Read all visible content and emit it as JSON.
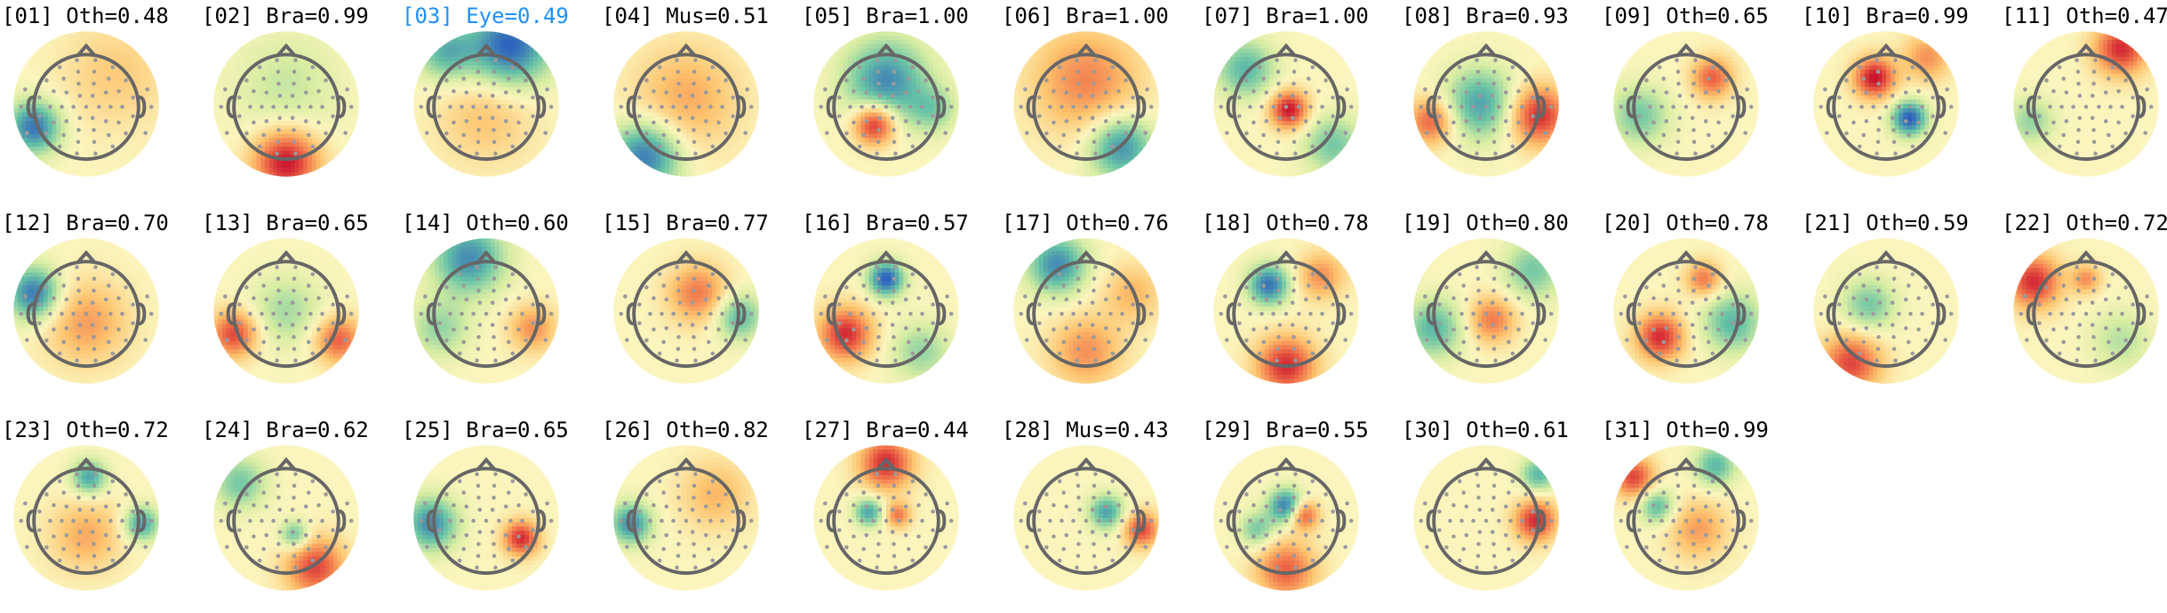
{
  "colors": {
    "negative_strong": "#2c5fbf",
    "neutral": "#fbf5bd",
    "positive_strong": "#c8102e",
    "highlight_label": "#1e90ff",
    "head_outline": "#666666",
    "electrode": "#9a9a9a"
  },
  "components": [
    {
      "id": "01",
      "label": "[01] Oth=0.48",
      "class": "Oth",
      "prob": 0.48,
      "highlight": false
    },
    {
      "id": "02",
      "label": "[02] Bra=0.99",
      "class": "Bra",
      "prob": 0.99,
      "highlight": false
    },
    {
      "id": "03",
      "label": "[03] Eye=0.49",
      "class": "Eye",
      "prob": 0.49,
      "highlight": true
    },
    {
      "id": "04",
      "label": "[04] Mus=0.51",
      "class": "Mus",
      "prob": 0.51,
      "highlight": false
    },
    {
      "id": "05",
      "label": "[05] Bra=1.00",
      "class": "Bra",
      "prob": 1.0,
      "highlight": false
    },
    {
      "id": "06",
      "label": "[06] Bra=1.00",
      "class": "Bra",
      "prob": 1.0,
      "highlight": false
    },
    {
      "id": "07",
      "label": "[07] Bra=1.00",
      "class": "Bra",
      "prob": 1.0,
      "highlight": false
    },
    {
      "id": "08",
      "label": "[08] Bra=0.93",
      "class": "Bra",
      "prob": 0.93,
      "highlight": false
    },
    {
      "id": "09",
      "label": "[09] Oth=0.65",
      "class": "Oth",
      "prob": 0.65,
      "highlight": false
    },
    {
      "id": "10",
      "label": "[10] Bra=0.99",
      "class": "Bra",
      "prob": 0.99,
      "highlight": false
    },
    {
      "id": "11",
      "label": "[11] Oth=0.47",
      "class": "Oth",
      "prob": 0.47,
      "highlight": false
    },
    {
      "id": "12",
      "label": "[12] Bra=0.70",
      "class": "Bra",
      "prob": 0.7,
      "highlight": false
    },
    {
      "id": "13",
      "label": "[13] Bra=0.65",
      "class": "Bra",
      "prob": 0.65,
      "highlight": false
    },
    {
      "id": "14",
      "label": "[14] Oth=0.60",
      "class": "Oth",
      "prob": 0.6,
      "highlight": false
    },
    {
      "id": "15",
      "label": "[15] Bra=0.77",
      "class": "Bra",
      "prob": 0.77,
      "highlight": false
    },
    {
      "id": "16",
      "label": "[16] Bra=0.57",
      "class": "Bra",
      "prob": 0.57,
      "highlight": false
    },
    {
      "id": "17",
      "label": "[17] Oth=0.76",
      "class": "Oth",
      "prob": 0.76,
      "highlight": false
    },
    {
      "id": "18",
      "label": "[18] Oth=0.78",
      "class": "Oth",
      "prob": 0.78,
      "highlight": false
    },
    {
      "id": "19",
      "label": "[19] Oth=0.80",
      "class": "Oth",
      "prob": 0.8,
      "highlight": false
    },
    {
      "id": "20",
      "label": "[20] Oth=0.78",
      "class": "Oth",
      "prob": 0.78,
      "highlight": false
    },
    {
      "id": "21",
      "label": "[21] Oth=0.59",
      "class": "Oth",
      "prob": 0.59,
      "highlight": false
    },
    {
      "id": "22",
      "label": "[22] Oth=0.72",
      "class": "Oth",
      "prob": 0.72,
      "highlight": false
    },
    {
      "id": "23",
      "label": "[23] Oth=0.72",
      "class": "Oth",
      "prob": 0.72,
      "highlight": false
    },
    {
      "id": "24",
      "label": "[24] Bra=0.62",
      "class": "Bra",
      "prob": 0.62,
      "highlight": false
    },
    {
      "id": "25",
      "label": "[25] Bra=0.65",
      "class": "Bra",
      "prob": 0.65,
      "highlight": false
    },
    {
      "id": "26",
      "label": "[26] Oth=0.82",
      "class": "Oth",
      "prob": 0.82,
      "highlight": false
    },
    {
      "id": "27",
      "label": "[27] Bra=0.44",
      "class": "Bra",
      "prob": 0.44,
      "highlight": false
    },
    {
      "id": "28",
      "label": "[28] Mus=0.43",
      "class": "Mus",
      "prob": 0.43,
      "highlight": false
    },
    {
      "id": "29",
      "label": "[29] Bra=0.55",
      "class": "Bra",
      "prob": 0.55,
      "highlight": false
    },
    {
      "id": "30",
      "label": "[30] Oth=0.61",
      "class": "Oth",
      "prob": 0.61,
      "highlight": false
    },
    {
      "id": "31",
      "label": "[31] Oth=0.99",
      "class": "Oth",
      "prob": 0.99,
      "highlight": false
    }
  ]
}
